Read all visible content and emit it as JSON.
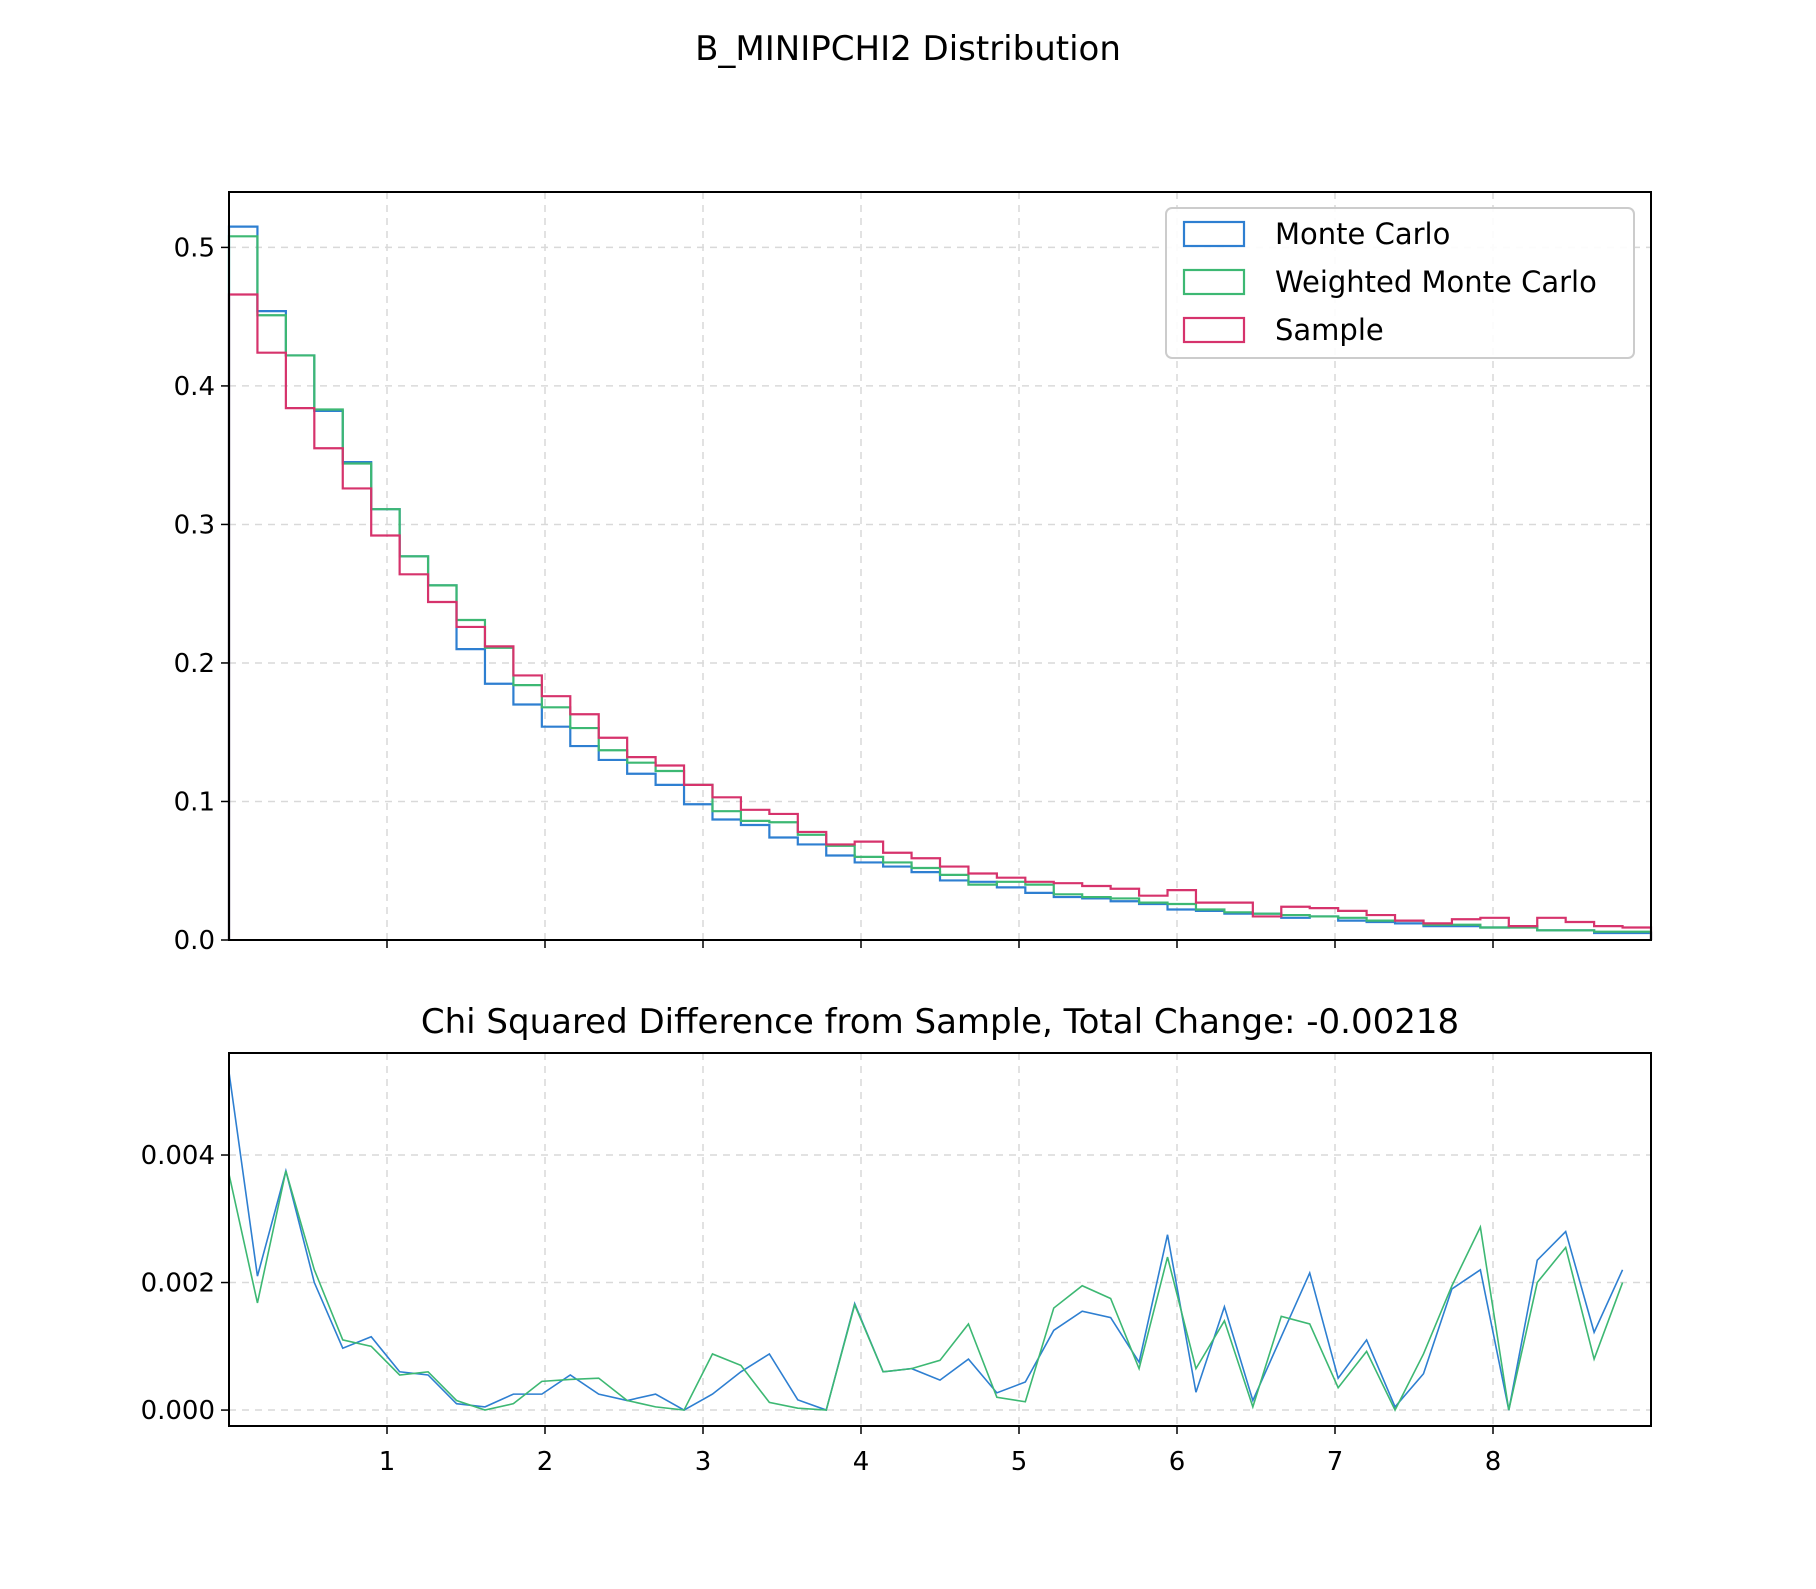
{
  "figure": {
    "suptitle": "B_MINIPCHI2 Distribution"
  },
  "chart_data": [
    {
      "type": "histogram-step",
      "title": "",
      "xlabel": "",
      "ylabel": "",
      "xlim": [
        0,
        9
      ],
      "ylim": [
        0,
        0.54
      ],
      "yticks": [
        "0.0",
        "0.1",
        "0.2",
        "0.3",
        "0.4",
        "0.5"
      ],
      "ytick_values": [
        0,
        0.1,
        0.2,
        0.3,
        0.4,
        0.5
      ],
      "grid": true,
      "legend_position": "top-right",
      "bin_width": 0.18,
      "series": [
        {
          "name": "Monte Carlo",
          "color": "#2e7fd1",
          "values": [
            0.515,
            0.454,
            0.422,
            0.382,
            0.345,
            0.311,
            0.277,
            0.256,
            0.21,
            0.185,
            0.17,
            0.154,
            0.14,
            0.13,
            0.12,
            0.112,
            0.098,
            0.087,
            0.083,
            0.074,
            0.069,
            0.061,
            0.056,
            0.053,
            0.049,
            0.043,
            0.042,
            0.038,
            0.034,
            0.031,
            0.03,
            0.028,
            0.026,
            0.022,
            0.021,
            0.019,
            0.019,
            0.016,
            0.017,
            0.014,
            0.013,
            0.012,
            0.01,
            0.01,
            0.009,
            0.01,
            0.007,
            0.007,
            0.005,
            0.005
          ]
        },
        {
          "name": "Weighted Monte Carlo",
          "color": "#3db873",
          "values": [
            0.508,
            0.451,
            0.422,
            0.383,
            0.344,
            0.311,
            0.277,
            0.256,
            0.231,
            0.211,
            0.184,
            0.168,
            0.153,
            0.137,
            0.128,
            0.122,
            0.112,
            0.093,
            0.086,
            0.085,
            0.076,
            0.068,
            0.06,
            0.056,
            0.052,
            0.047,
            0.04,
            0.042,
            0.04,
            0.033,
            0.031,
            0.03,
            0.027,
            0.026,
            0.022,
            0.02,
            0.019,
            0.018,
            0.017,
            0.016,
            0.014,
            0.014,
            0.011,
            0.011,
            0.009,
            0.009,
            0.007,
            0.007,
            0.006,
            0.006
          ]
        },
        {
          "name": "Sample",
          "color": "#d6336c",
          "values": [
            0.466,
            0.424,
            0.384,
            0.355,
            0.326,
            0.292,
            0.264,
            0.244,
            0.226,
            0.212,
            0.191,
            0.176,
            0.163,
            0.146,
            0.132,
            0.126,
            0.112,
            0.103,
            0.094,
            0.091,
            0.078,
            0.069,
            0.071,
            0.063,
            0.059,
            0.053,
            0.048,
            0.045,
            0.042,
            0.041,
            0.039,
            0.037,
            0.032,
            0.036,
            0.027,
            0.027,
            0.017,
            0.024,
            0.023,
            0.021,
            0.018,
            0.014,
            0.012,
            0.015,
            0.016,
            0.01,
            0.016,
            0.013,
            0.01,
            0.009
          ]
        }
      ]
    },
    {
      "type": "line",
      "title": "Chi Squared Difference from Sample, Total Change: -0.00218",
      "xlabel": "",
      "ylabel": "",
      "xlim": [
        0,
        9
      ],
      "ylim": [
        -0.00025,
        0.0056
      ],
      "xticks": [
        "1",
        "2",
        "3",
        "4",
        "5",
        "6",
        "7",
        "8"
      ],
      "xtick_values": [
        1,
        2,
        3,
        4,
        5,
        6,
        7,
        8
      ],
      "yticks": [
        "0.000",
        "0.002",
        "0.004"
      ],
      "ytick_values": [
        0,
        0.002,
        0.004
      ],
      "grid": true,
      "x": [
        0.0,
        0.18,
        0.36,
        0.54,
        0.72,
        0.9,
        1.08,
        1.26,
        1.44,
        1.62,
        1.8,
        1.98,
        2.16,
        2.34,
        2.52,
        2.7,
        2.88,
        3.06,
        3.24,
        3.42,
        3.6,
        3.78,
        3.96,
        4.14,
        4.32,
        4.5,
        4.68,
        4.86,
        5.04,
        5.22,
        5.4,
        5.58,
        5.76,
        5.94,
        6.12,
        6.3,
        6.48,
        6.66,
        6.84,
        7.02,
        7.2,
        7.38,
        7.56,
        7.74,
        7.92,
        8.1,
        8.28,
        8.46,
        8.64,
        8.82
      ],
      "series": [
        {
          "name": "Monte Carlo",
          "color": "#2e7fd1",
          "values": [
            0.0053,
            0.0021,
            0.00375,
            0.002,
            0.00097,
            0.00115,
            0.0006,
            0.00055,
            0.0001,
            5e-05,
            0.00025,
            0.00025,
            0.00055,
            0.00025,
            0.00015,
            0.00025,
            0.0,
            0.00025,
            0.0006,
            0.00088,
            0.00016,
            0.0,
            0.00167,
            0.0006,
            0.00065,
            0.00047,
            0.0008,
            0.00027,
            0.00044,
            0.00125,
            0.00155,
            0.00145,
            0.00075,
            0.00275,
            0.00028,
            0.00162,
            0.00015,
            0.00115,
            0.00215,
            0.0005,
            0.0011,
            5e-05,
            0.00057,
            0.0019,
            0.0022,
            0.0,
            0.00235,
            0.0028,
            0.00122,
            0.0022
          ]
        },
        {
          "name": "Weighted Monte Carlo",
          "color": "#3db873",
          "values": [
            0.0037,
            0.00168,
            0.00375,
            0.0022,
            0.0011,
            0.001,
            0.00055,
            0.0006,
            0.00015,
            0.0,
            0.0001,
            0.00045,
            0.00048,
            0.0005,
            0.00015,
            5e-05,
            0.0,
            0.00088,
            0.0007,
            0.00012,
            3e-05,
            0.0,
            0.00165,
            0.0006,
            0.00065,
            0.00078,
            0.00135,
            0.0002,
            0.00013,
            0.0016,
            0.00195,
            0.00175,
            0.00065,
            0.0024,
            0.00065,
            0.0014,
            5e-05,
            0.00147,
            0.00135,
            0.00035,
            0.00092,
            0.0,
            0.00088,
            0.00195,
            0.00287,
            0.0,
            0.002,
            0.00255,
            0.0008,
            0.002
          ]
        }
      ]
    }
  ]
}
